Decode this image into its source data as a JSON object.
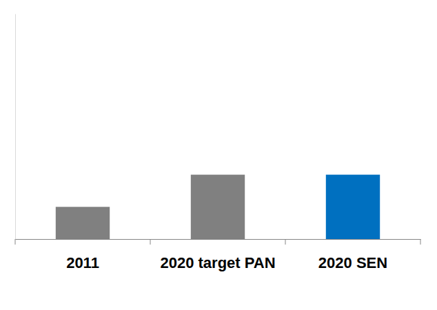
{
  "chart_data": {
    "type": "bar",
    "categories": [
      "2011",
      "2020 target PAN",
      "2020 SEN"
    ],
    "values": [
      1,
      2,
      2
    ],
    "colors": [
      "#808080",
      "#808080",
      "#0070c0"
    ],
    "ylim": [
      0,
      7
    ],
    "yticks": [],
    "grid": false,
    "tick_labels": "x"
  }
}
